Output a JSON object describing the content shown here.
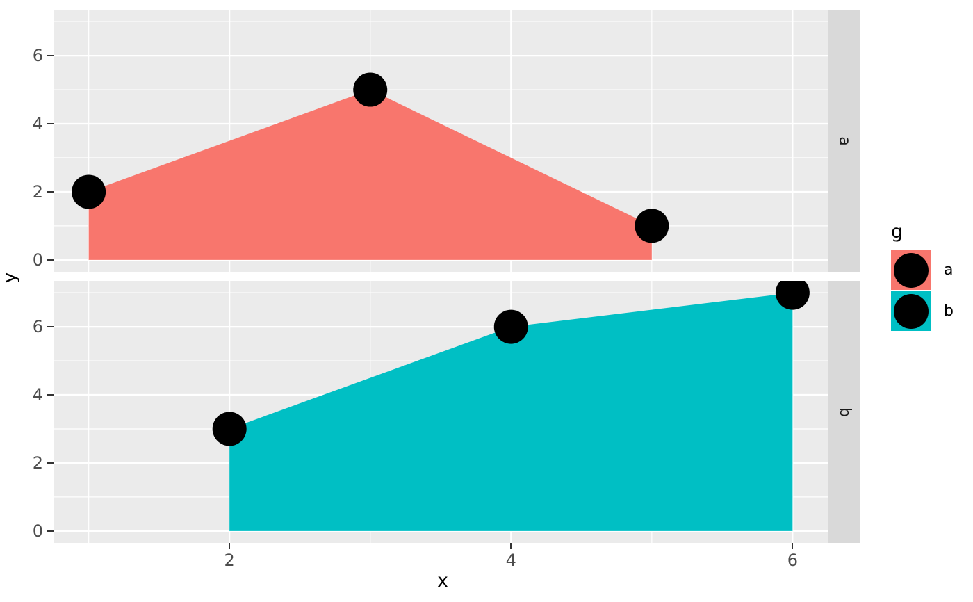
{
  "chart_data": {
    "type": "area",
    "xlabel": "x",
    "ylabel": "y",
    "x_ticks": [
      2,
      4,
      6
    ],
    "y_ticks": [
      0,
      2,
      4,
      6
    ],
    "x_minor": [
      1,
      3,
      5
    ],
    "y_minor": [
      1,
      3,
      5,
      7
    ],
    "x_range": [
      0.75,
      6.25
    ],
    "y_range": [
      -0.35,
      7.35
    ],
    "grid": true,
    "facets": [
      {
        "label": "a",
        "series": "a",
        "color": "#F8766D",
        "points": [
          [
            1,
            2
          ],
          [
            3,
            5
          ],
          [
            5,
            1
          ]
        ]
      },
      {
        "label": "b",
        "series": "b",
        "color": "#00BFC4",
        "points": [
          [
            2,
            3
          ],
          [
            4,
            6
          ],
          [
            6,
            7
          ]
        ]
      }
    ],
    "legend": {
      "title": "g",
      "position": "right",
      "entries": [
        {
          "label": "a",
          "color": "#F8766D"
        },
        {
          "label": "b",
          "color": "#00BFC4"
        }
      ]
    },
    "colors": {
      "point": "#000000",
      "panel_bg": "#EBEBEB",
      "strip_bg": "#D9D9D9",
      "grid": "#FFFFFF",
      "axis_text": "#4D4D4D",
      "tick_mark": "#333333"
    }
  }
}
